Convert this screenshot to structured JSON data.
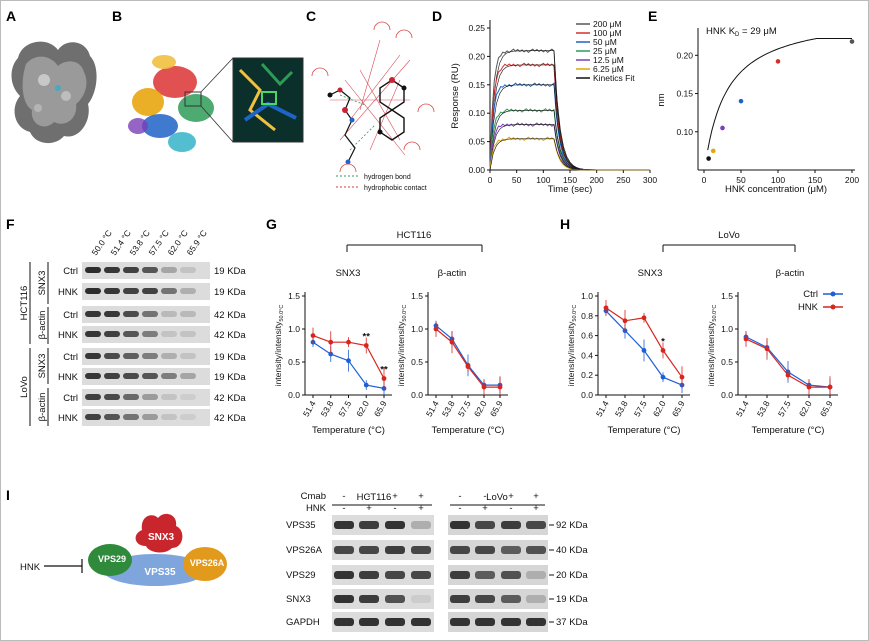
{
  "panels": {
    "A": "A",
    "B": "B",
    "C": "C",
    "D": "D",
    "E": "E",
    "F": "F",
    "G": "G",
    "H": "H",
    "I": "I"
  },
  "colors": {
    "ctrl": "#1f5fd6",
    "hnk": "#d7261e",
    "accent_red": "#e53935",
    "kinetics": "#111111",
    "green": "#2e9b57"
  },
  "panel_c": {
    "legend": [
      {
        "label": "hydrogen bond",
        "color": "#2e9b57"
      },
      {
        "label": "hydrophobic contact",
        "color": "#e53935"
      }
    ]
  },
  "panel_d": {
    "y_label": "Response (RU)",
    "x_label": "Time (sec)",
    "y_ticks": [
      "0.00",
      "0.05",
      "0.10",
      "0.15",
      "0.20",
      "0.25"
    ],
    "x_ticks": [
      "0",
      "50",
      "100",
      "150",
      "200",
      "250",
      "300"
    ],
    "legend": [
      {
        "label": "200 μM",
        "color": "#555555"
      },
      {
        "label": "100 μM",
        "color": "#d32f2f"
      },
      {
        "label": "50 μM",
        "color": "#1e63c7"
      },
      {
        "label": "25 μM",
        "color": "#2e9b57"
      },
      {
        "label": "12.5 μM",
        "color": "#7b3fb8"
      },
      {
        "label": "6.25 μM",
        "color": "#e0a800"
      },
      {
        "label": "Kinetics Fit",
        "color": "#111111"
      }
    ]
  },
  "chart_data": [
    {
      "type": "line",
      "title": "",
      "xlabel": "Time (sec)",
      "ylabel": "Response (RU)",
      "xlim": [
        0,
        300
      ],
      "ylim": [
        0,
        0.25
      ],
      "series": [
        {
          "name": "200 μM",
          "plateau": 0.21
        },
        {
          "name": "100 μM",
          "plateau": 0.185
        },
        {
          "name": "50 μM",
          "plateau": 0.15
        },
        {
          "name": "25 μM",
          "plateau": 0.105
        },
        {
          "name": "12.5 μM",
          "plateau": 0.08
        },
        {
          "name": "6.25 μM",
          "plateau": 0.055
        }
      ],
      "association_end": 120
    },
    {
      "type": "scatter",
      "title": "HNK K_D = 29 μM",
      "xlabel": "HNK concentration (μM)",
      "ylabel": "nm",
      "xlim": [
        0,
        200
      ],
      "ylim": [
        0.05,
        0.22
      ],
      "x": [
        6.25,
        12.5,
        25,
        50,
        100,
        200
      ],
      "y": [
        0.065,
        0.075,
        0.105,
        0.14,
        0.192,
        0.218
      ]
    },
    {
      "type": "line",
      "title": "SNX3",
      "xlabel": "Temperature (°C)",
      "ylabel": "intensity/intensity 50.0°C",
      "categories": [
        "51.4",
        "53.8",
        "57.5",
        "62.0",
        "65.9"
      ],
      "ylim": [
        0,
        1.5
      ],
      "series": [
        {
          "name": "Ctrl",
          "values": [
            0.8,
            0.62,
            0.52,
            0.15,
            0.1
          ]
        },
        {
          "name": "HNK",
          "values": [
            0.9,
            0.8,
            0.8,
            0.75,
            0.25
          ]
        }
      ],
      "annotations": [
        "**",
        "**"
      ]
    },
    {
      "type": "line",
      "title": "β-actin",
      "xlabel": "Temperature (°C)",
      "ylabel": "intensity/intensity 50.0°C",
      "categories": [
        "51.4",
        "53.8",
        "57.5",
        "62.0",
        "65.9"
      ],
      "ylim": [
        0,
        1.5
      ],
      "series": [
        {
          "name": "Ctrl",
          "values": [
            1.05,
            0.85,
            0.45,
            0.15,
            0.15
          ]
        },
        {
          "name": "HNK",
          "values": [
            1.0,
            0.8,
            0.43,
            0.12,
            0.12
          ]
        }
      ]
    },
    {
      "type": "line",
      "title": "SNX3",
      "xlabel": "Temperature (°C)",
      "ylabel": "intensity/intensity 50.0°C",
      "categories": [
        "51.4",
        "53.8",
        "57.5",
        "62.0",
        "65.9"
      ],
      "ylim": [
        0,
        1.0
      ],
      "series": [
        {
          "name": "Ctrl",
          "values": [
            0.85,
            0.65,
            0.45,
            0.18,
            0.1
          ]
        },
        {
          "name": "HNK",
          "values": [
            0.88,
            0.75,
            0.78,
            0.45,
            0.18
          ]
        }
      ],
      "annotations": [
        "*"
      ]
    },
    {
      "type": "line",
      "title": "β-actin",
      "xlabel": "Temperature (°C)",
      "ylabel": "intensity/intensity 50.0°C",
      "categories": [
        "51.4",
        "53.8",
        "57.5",
        "62.0",
        "65.9"
      ],
      "ylim": [
        0,
        1.5
      ],
      "series": [
        {
          "name": "Ctrl",
          "values": [
            0.88,
            0.72,
            0.35,
            0.15,
            0.12
          ]
        },
        {
          "name": "HNK",
          "values": [
            0.85,
            0.7,
            0.3,
            0.12,
            0.12
          ]
        }
      ]
    }
  ],
  "panel_e": {
    "title": "HNK K",
    "title_sub": "D",
    "title_tail": " = 29 μM",
    "y_label": "nm",
    "x_label": "HNK concentration (μM)",
    "y_ticks": [
      "0.10",
      "0.15",
      "0.20"
    ],
    "x_ticks": [
      "0",
      "50",
      "100",
      "150",
      "200"
    ],
    "point_colors": [
      "#111111",
      "#e0a800",
      "#7b3fb8",
      "#1e63c7",
      "#d32f2f",
      "#555555"
    ]
  },
  "panel_f": {
    "temps": [
      "50.0 °C",
      "51.4 °C",
      "53.8 °C",
      "57.5 °C",
      "62.0 °C",
      "65.9 °C"
    ],
    "rows": [
      {
        "label": "Ctrl",
        "kda": "19 KDa"
      },
      {
        "label": "HNK",
        "kda": "19 KDa"
      },
      {
        "label": "Ctrl",
        "kda": "42 KDa"
      },
      {
        "label": "HNK",
        "kda": "42 KDa"
      },
      {
        "label": "Ctrl",
        "kda": "19 KDa"
      },
      {
        "label": "HNK",
        "kda": "19 KDa"
      },
      {
        "label": "Ctrl",
        "kda": "42 KDa"
      },
      {
        "label": "HNK",
        "kda": "42 KDa"
      }
    ],
    "group_labels": {
      "snx3": "SNX3",
      "actin": "β-actin",
      "hct": "HCT116",
      "lovo": "LoVo"
    }
  },
  "panel_g": {
    "cell_line": "HCT116",
    "left_title": "SNX3",
    "right_title": "β-actin",
    "y_label": "intensity/intensity",
    "y_sub": "50.0°C",
    "x_label": "Temperature (°C)",
    "y_ticks": [
      "0.0",
      "0.5",
      "1.0",
      "1.5"
    ],
    "x_ticks": [
      "51.4",
      "53.8",
      "57.5",
      "62.0",
      "65.9"
    ]
  },
  "panel_h": {
    "cell_line": "LoVo",
    "left_title": "SNX3",
    "right_title": "β-actin",
    "y_label": "intensity/intensity",
    "y_sub": "50.0°C",
    "x_label": "Temperature (°C)",
    "y_ticks_left": [
      "0.0",
      "0.2",
      "0.4",
      "0.6",
      "0.8",
      "1.0"
    ],
    "y_ticks_right": [
      "0.0",
      "0.5",
      "1.0",
      "1.5"
    ],
    "x_ticks": [
      "51.4",
      "53.8",
      "57.5",
      "62.0",
      "65.9"
    ],
    "legend": [
      {
        "label": "Ctrl"
      },
      {
        "label": "HNK"
      }
    ]
  },
  "panel_i": {
    "hnk": "HNK",
    "complex": {
      "snx3": "SNX3",
      "vps29": "VPS29",
      "vps35": "VPS35",
      "vps26a": "VPS26A"
    },
    "cell_lines": [
      "HCT116",
      "LoVo"
    ],
    "treat_labels": [
      "Cmab",
      "HNK"
    ],
    "cmab": [
      "-",
      "-",
      "+",
      "+"
    ],
    "hnk_signs": [
      "-",
      "+",
      "-",
      "+"
    ],
    "blots": [
      {
        "label": "VPS35",
        "kda": "92 KDa"
      },
      {
        "label": "VPS26A",
        "kda": "40 KDa"
      },
      {
        "label": "VPS29",
        "kda": "20 KDa"
      },
      {
        "label": "SNX3",
        "kda": "19 KDa"
      },
      {
        "label": "GAPDH",
        "kda": "37 KDa"
      }
    ]
  }
}
